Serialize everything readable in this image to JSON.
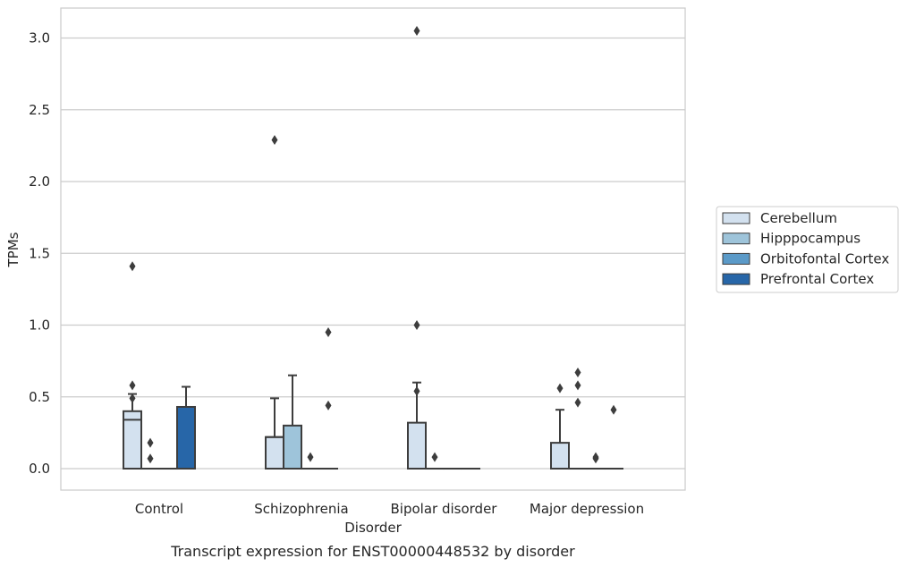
{
  "chart_data": {
    "type": "box",
    "caption": "Transcript expression for ENST00000448532 by disorder",
    "xlabel": "Disorder",
    "ylabel": "TPMs",
    "ylim": [
      -0.15,
      3.2
    ],
    "yticks": [
      0.0,
      0.5,
      1.0,
      1.5,
      2.0,
      2.5,
      3.0
    ],
    "ytick_labels": [
      "0.0",
      "0.5",
      "1.0",
      "1.5",
      "2.0",
      "2.5",
      "3.0"
    ],
    "grid": "horizontal",
    "legend_position": "right",
    "categories": [
      "Control",
      "Schizophrenia",
      "Bipolar disorder",
      "Major depression"
    ],
    "series": [
      {
        "name": "Cerebellum",
        "color": "#d3e1ef",
        "boxes": [
          {
            "min": 0.0,
            "q1": 0.0,
            "median": 0.34,
            "q3": 0.4,
            "max": 0.52,
            "outliers": [
              1.41,
              0.58,
              0.49
            ]
          },
          {
            "min": 0.0,
            "q1": 0.0,
            "median": 0.22,
            "q3": 0.22,
            "max": 0.49,
            "outliers": [
              2.29
            ]
          },
          {
            "min": 0.0,
            "q1": 0.0,
            "median": 0.0,
            "q3": 0.32,
            "max": 0.6,
            "outliers": [
              3.05,
              1.0,
              0.54
            ]
          },
          {
            "min": 0.0,
            "q1": 0.0,
            "median": 0.0,
            "q3": 0.18,
            "max": 0.41,
            "outliers": [
              0.56
            ]
          }
        ]
      },
      {
        "name": "Hipppocampus",
        "color": "#9ec4da",
        "boxes": [
          {
            "min": 0.0,
            "q1": 0.0,
            "median": 0.0,
            "q3": 0.0,
            "max": 0.0,
            "outliers": [
              0.18,
              0.07
            ]
          },
          {
            "min": 0.0,
            "q1": 0.0,
            "median": 0.0,
            "q3": 0.3,
            "max": 0.65,
            "outliers": []
          },
          {
            "min": 0.0,
            "q1": 0.0,
            "median": 0.0,
            "q3": 0.0,
            "max": 0.0,
            "outliers": [
              0.08
            ]
          },
          {
            "min": 0.0,
            "q1": 0.0,
            "median": 0.0,
            "q3": 0.0,
            "max": 0.0,
            "outliers": [
              0.67,
              0.58,
              0.46
            ]
          }
        ]
      },
      {
        "name": "Orbitofontal Cortex",
        "color": "#5b9ac8",
        "boxes": [
          {
            "min": 0.0,
            "q1": 0.0,
            "median": 0.0,
            "q3": 0.0,
            "max": 0.0,
            "outliers": []
          },
          {
            "min": 0.0,
            "q1": 0.0,
            "median": 0.0,
            "q3": 0.0,
            "max": 0.0,
            "outliers": [
              0.08
            ]
          },
          {
            "min": 0.0,
            "q1": 0.0,
            "median": 0.0,
            "q3": 0.0,
            "max": 0.0,
            "outliers": []
          },
          {
            "min": 0.0,
            "q1": 0.0,
            "median": 0.0,
            "q3": 0.0,
            "max": 0.0,
            "outliers": [
              0.08,
              0.07
            ]
          }
        ]
      },
      {
        "name": "Prefrontal Cortex",
        "color": "#2766a8",
        "boxes": [
          {
            "min": 0.0,
            "q1": 0.0,
            "median": 0.0,
            "q3": 0.43,
            "max": 0.57,
            "outliers": []
          },
          {
            "min": 0.0,
            "q1": 0.0,
            "median": 0.0,
            "q3": 0.0,
            "max": 0.0,
            "outliers": [
              0.95,
              0.44
            ]
          },
          {
            "min": 0.0,
            "q1": 0.0,
            "median": 0.0,
            "q3": 0.0,
            "max": 0.0,
            "outliers": []
          },
          {
            "min": 0.0,
            "q1": 0.0,
            "median": 0.0,
            "q3": 0.0,
            "max": 0.0,
            "outliers": [
              0.41
            ]
          }
        ]
      }
    ]
  }
}
